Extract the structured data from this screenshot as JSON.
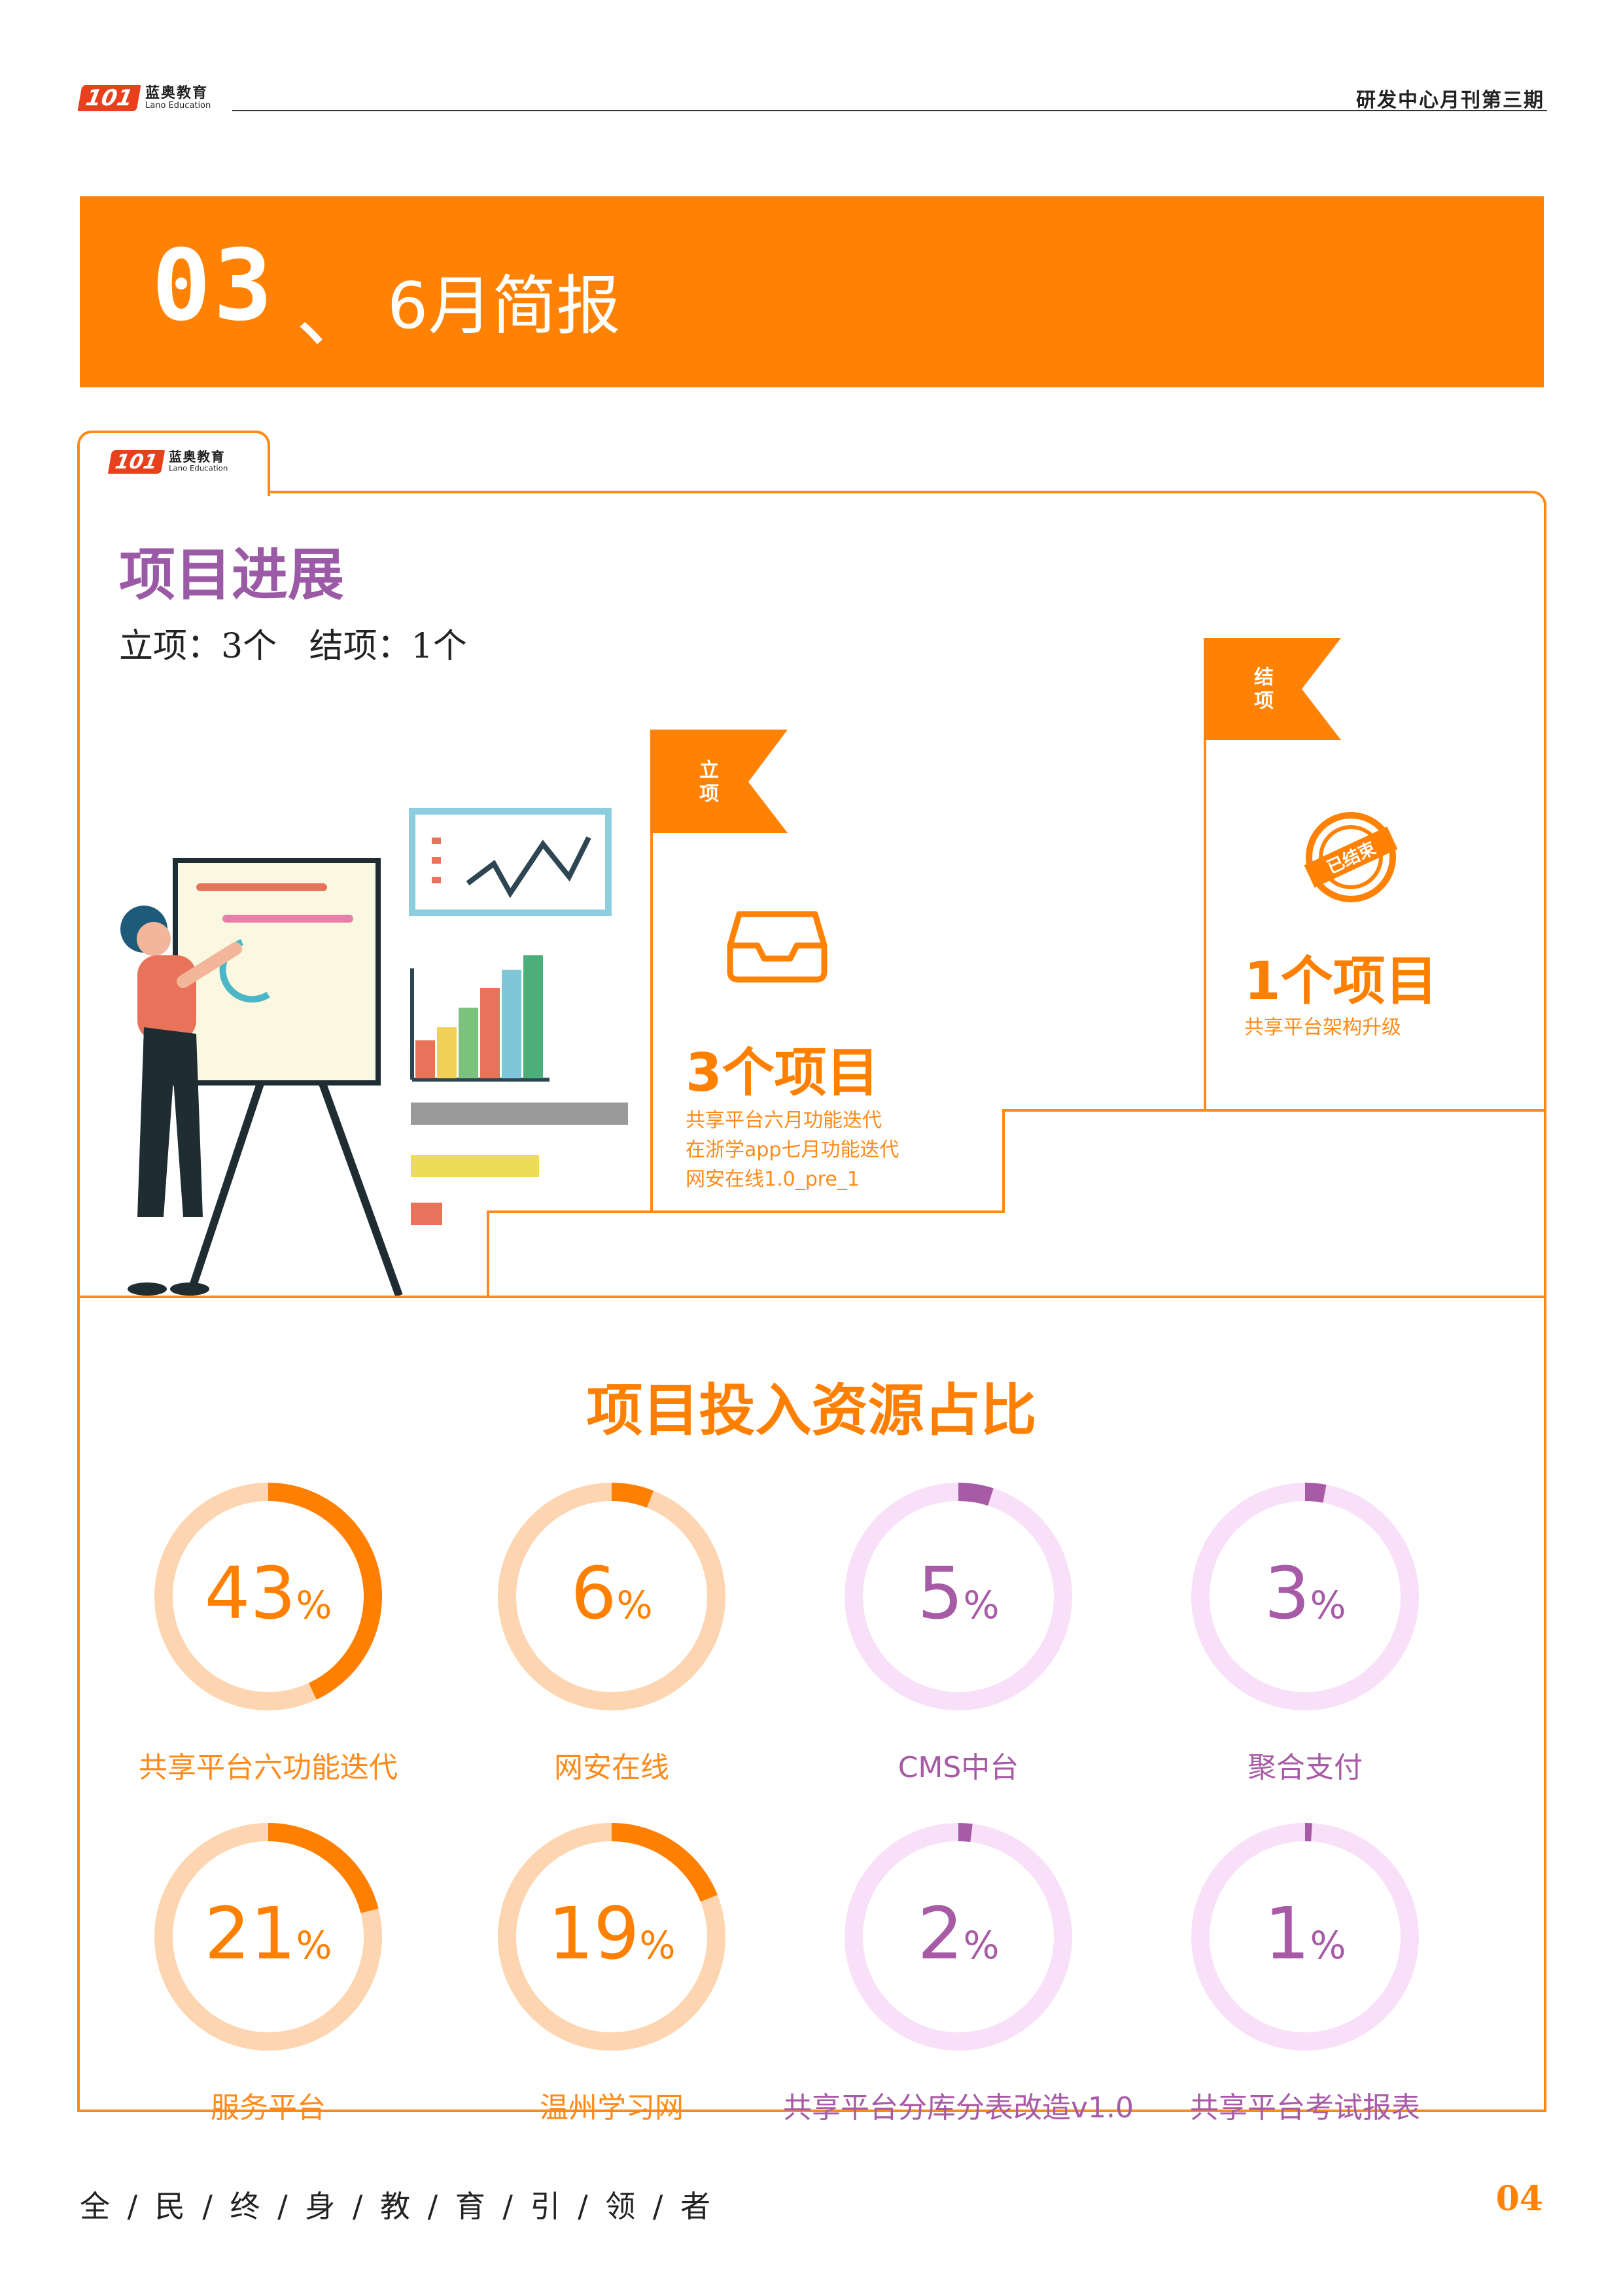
{
  "header": {
    "logo_mark": "101",
    "logo_cn": "蓝奥教育",
    "logo_en": "Lano Education",
    "issue_title": "研发中心月刊第三期"
  },
  "banner": {
    "number": "03",
    "separator": "、",
    "title": "6月简报"
  },
  "progress": {
    "title": "项目进展",
    "summary": "立项：3个   结项：1个",
    "started": {
      "flag": "立项",
      "count_text": "3个项目",
      "items": [
        "共享平台六月功能迭代",
        "在浙学app七月功能迭代",
        "网安在线1.0_pre_1"
      ]
    },
    "finished": {
      "flag": "结项",
      "stamp": "已结束",
      "count_text": "1个项目",
      "items": [
        "共享平台架构升级"
      ]
    }
  },
  "resources": {
    "title": "项目投入资源占比",
    "orange_track": "#fdd5b1",
    "orange_arc": "#ff7f00",
    "purple_track": "#f8e0f8",
    "purple_arc": "#a75ba6",
    "items": [
      {
        "label": "共享平台六功能迭代",
        "value": 43,
        "pct_sign": "%",
        "theme": "orange"
      },
      {
        "label": "网安在线",
        "value": 6,
        "pct_sign": "%",
        "theme": "orange"
      },
      {
        "label": "CMS中台",
        "value": 5,
        "pct_sign": "%",
        "theme": "purple"
      },
      {
        "label": "聚合支付",
        "value": 3,
        "pct_sign": "%",
        "theme": "purple"
      },
      {
        "label": "服务平台",
        "value": 21,
        "pct_sign": "%",
        "theme": "orange"
      },
      {
        "label": "温州学习网",
        "value": 19,
        "pct_sign": "%",
        "theme": "orange"
      },
      {
        "label": "共享平台分库分表改造v1.0",
        "value": 2,
        "pct_sign": "%",
        "theme": "purple"
      },
      {
        "label": "共享平台考试报表",
        "value": 1,
        "pct_sign": "%",
        "theme": "purple"
      }
    ]
  },
  "footer": {
    "motto": "全 / 民 / 终 / 身 / 教 / 育 / 引 / 领 / 者",
    "page": "04"
  }
}
